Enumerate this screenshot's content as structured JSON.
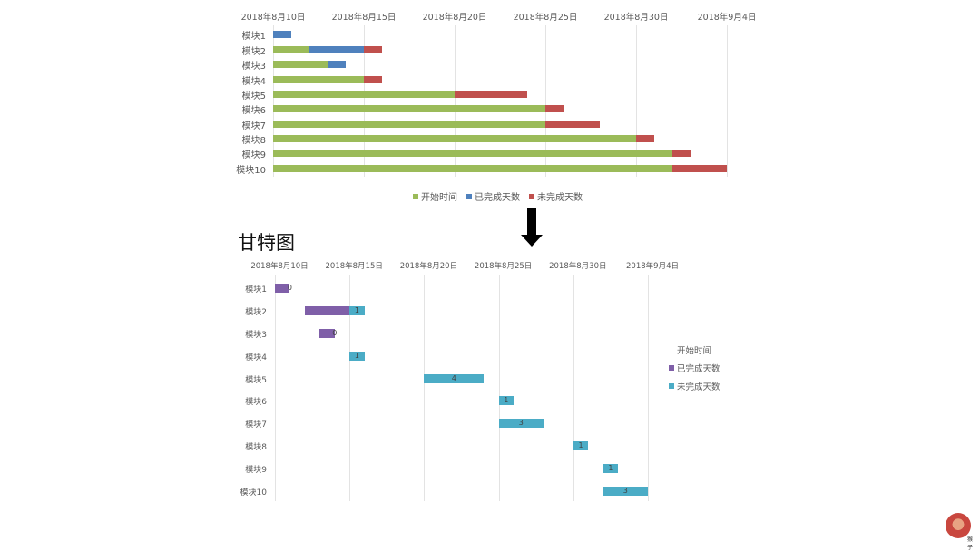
{
  "top_chart": {
    "x_ticks": [
      "2018年8月10日",
      "2018年8月15日",
      "2018年8月20日",
      "2018年8月25日",
      "2018年8月30日",
      "2018年9月4日"
    ],
    "rows": [
      "模块1",
      "模块2",
      "模块3",
      "模块4",
      "模块5",
      "模块6",
      "模块7",
      "模块8",
      "模块9",
      "模块10"
    ],
    "legend": [
      {
        "label": "开始时间",
        "color": "#9bbb59"
      },
      {
        "label": "已完成天数",
        "color": "#4f81bd"
      },
      {
        "label": "未完成天数",
        "color": "#c0504d"
      }
    ]
  },
  "arrow": {
    "icon": "down-arrow-icon"
  },
  "bottom_chart": {
    "title": "甘特图",
    "x_ticks": [
      "2018年8月10日",
      "2018年8月15日",
      "2018年8月20日",
      "2018年8月25日",
      "2018年8月30日",
      "2018年9月4日"
    ],
    "rows": [
      "模块1",
      "模块2",
      "模块3",
      "模块4",
      "模块5",
      "模块6",
      "模块7",
      "模块8",
      "模块9",
      "模块10"
    ],
    "data_labels": [
      "0",
      "1",
      "0",
      "1",
      "4",
      "1",
      "3",
      "1",
      "1",
      "3"
    ],
    "legend": [
      {
        "label": "开始时间",
        "color": "none"
      },
      {
        "label": "已完成天数",
        "color": "#7f5fa8"
      },
      {
        "label": "未完成天数",
        "color": "#4bacc6"
      }
    ]
  },
  "logo": {
    "text": "猴子"
  },
  "chart_data": [
    {
      "type": "bar",
      "orientation": "horizontal-stacked",
      "title": "",
      "xlabel": "",
      "ylabel": "",
      "x_axis_type": "date",
      "xlim": [
        "2018-08-10",
        "2018-09-04"
      ],
      "x_tick_labels": [
        "2018年8月10日",
        "2018年8月15日",
        "2018年8月20日",
        "2018年8月25日",
        "2018年8月30日",
        "2018年9月4日"
      ],
      "categories": [
        "模块1",
        "模块2",
        "模块3",
        "模块4",
        "模块5",
        "模块6",
        "模块7",
        "模块8",
        "模块9",
        "模块10"
      ],
      "series": [
        {
          "name": "开始时间",
          "color": "#9bbb59",
          "values": [
            0,
            2,
            3,
            5,
            10,
            15,
            15,
            20,
            22,
            22
          ]
        },
        {
          "name": "已完成天数",
          "color": "#4f81bd",
          "values": [
            1,
            3,
            1,
            0,
            0,
            0,
            0,
            0,
            0,
            0
          ]
        },
        {
          "name": "未完成天数",
          "color": "#c0504d",
          "values": [
            0,
            1,
            0,
            1,
            4,
            1,
            3,
            1,
            1,
            3
          ]
        }
      ],
      "grid": true,
      "legend_position": "bottom"
    },
    {
      "type": "bar",
      "orientation": "horizontal-stacked (gantt)",
      "title": "甘特图",
      "xlabel": "",
      "ylabel": "",
      "x_axis_type": "date",
      "xlim": [
        "2018-08-10",
        "2018-09-04"
      ],
      "x_tick_labels": [
        "2018年8月10日",
        "2018年8月15日",
        "2018年8月20日",
        "2018年8月25日",
        "2018年8月30日",
        "2018年9月4日"
      ],
      "categories": [
        "模块1",
        "模块2",
        "模块3",
        "模块4",
        "模块5",
        "模块6",
        "模块7",
        "模块8",
        "模块9",
        "模块10"
      ],
      "series": [
        {
          "name": "开始时间",
          "color": "none",
          "values": [
            0,
            2,
            3,
            5,
            10,
            15,
            15,
            20,
            22,
            22
          ]
        },
        {
          "name": "已完成天数",
          "color": "#7f5fa8",
          "values": [
            1,
            3,
            1,
            0,
            0,
            0,
            0,
            0,
            0,
            0
          ]
        },
        {
          "name": "未完成天数",
          "color": "#4bacc6",
          "values": [
            0,
            1,
            0,
            1,
            4,
            1,
            3,
            1,
            1,
            3
          ],
          "data_labels": true
        }
      ],
      "grid": true,
      "legend_position": "right"
    }
  ]
}
